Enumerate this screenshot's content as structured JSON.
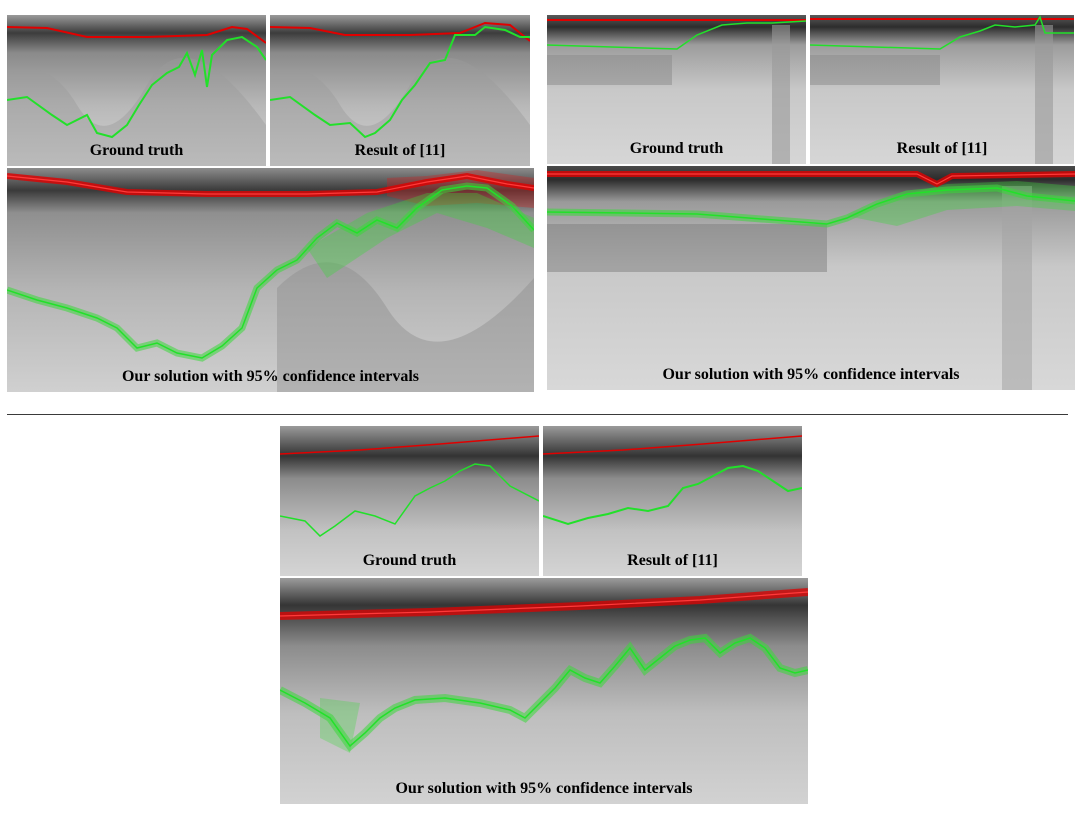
{
  "figure": {
    "labels": {
      "ground_truth": "Ground truth",
      "result_ref": "Result of [11]",
      "ours": "Our solution with 95% confidence intervals"
    },
    "colors": {
      "surface_line": "#e00000",
      "bottom_line": "#22e02a",
      "surface_band": "#d02020",
      "bottom_band": "#3ad83a",
      "echogram_light": "#d6d6d6",
      "echogram_dark": "#3a3a3a",
      "divider": "#3a3a3a"
    }
  }
}
